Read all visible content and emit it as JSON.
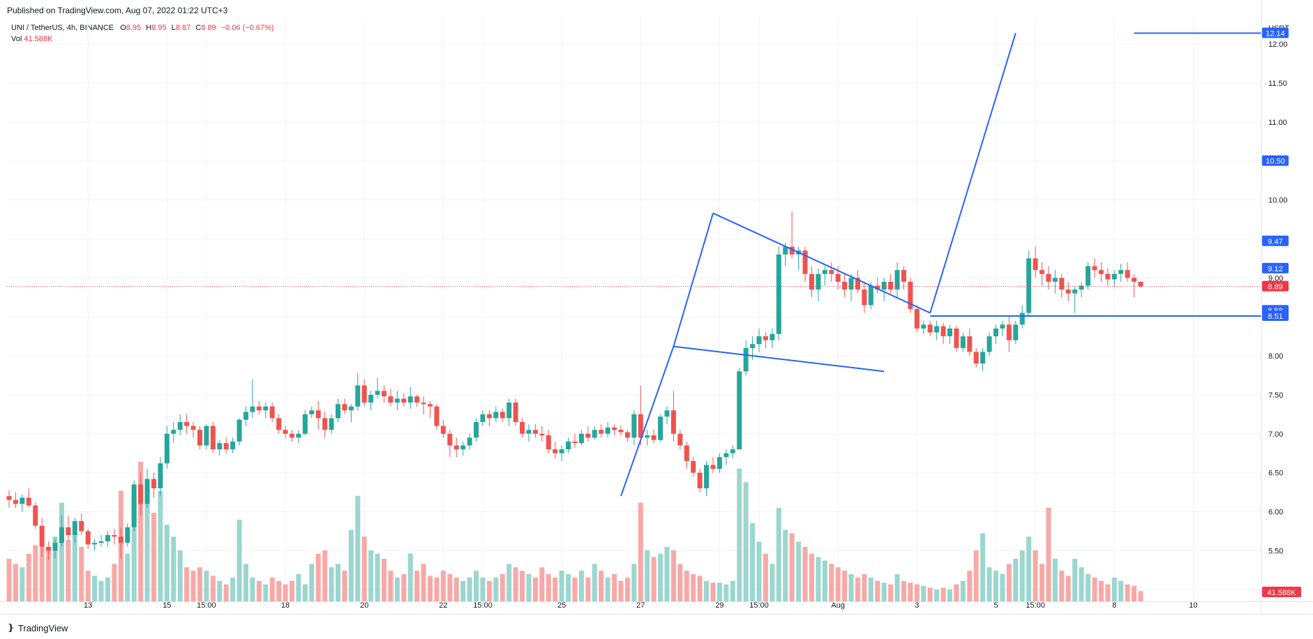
{
  "header": {
    "published": "Published on TradingView.com, Aug 07, 2022 01:22 UTC+3"
  },
  "legend": {
    "symbol": "UNI / TetherUS, 4h, BINANCE",
    "o_label": "O",
    "o_value": "8.95",
    "h_label": "H",
    "h_value": "8.95",
    "l_label": "L",
    "l_value": "8.87",
    "c_label": "C",
    "c_value": "8.89",
    "change": "−0.06 (−0.67%)",
    "vol_label": "Vol",
    "vol_value": "41.588K"
  },
  "footer": {
    "brand": "TradingView"
  },
  "colors": {
    "up": "#26a69a",
    "down": "#ef5350",
    "up_vol": "#9bd6cf",
    "down_vol": "#f7a9a7",
    "drawing": "#2962ff",
    "last_price": "#f23645"
  },
  "chart_data": {
    "type": "candlestick",
    "symbol": "UNI / TetherUS",
    "interval": "4h",
    "exchange": "BINANCE",
    "currency": "USDT",
    "ylim": [
      4.85,
      12.35
    ],
    "y_ticks": [
      "5.00",
      "5.50",
      "6.00",
      "6.50",
      "7.00",
      "7.50",
      "8.00",
      "8.50",
      "9.00",
      "9.50",
      "10.00",
      "10.50",
      "11.00",
      "11.50",
      "12.00"
    ],
    "x_ticks": [
      {
        "label": "13",
        "i": 12
      },
      {
        "label": "15",
        "i": 24
      },
      {
        "label": "15:00",
        "i": 30
      },
      {
        "label": "18",
        "i": 42
      },
      {
        "label": "20",
        "i": 54
      },
      {
        "label": "22",
        "i": 66
      },
      {
        "label": "15:00",
        "i": 72
      },
      {
        "label": "25",
        "i": 84
      },
      {
        "label": "27",
        "i": 96
      },
      {
        "label": "29",
        "i": 108
      },
      {
        "label": "15:00",
        "i": 114
      },
      {
        "label": "Aug",
        "i": 126
      },
      {
        "label": "3",
        "i": 138
      },
      {
        "label": "5",
        "i": 150
      },
      {
        "label": "15:00",
        "i": 156
      },
      {
        "label": "8",
        "i": 168
      },
      {
        "label": "10",
        "i": 180
      }
    ],
    "price_labels": [
      {
        "value": "12.14",
        "y": 12.14,
        "color": "#2962ff"
      },
      {
        "value": "10.50",
        "y": 10.5,
        "color": "#2962ff"
      },
      {
        "value": "9.47",
        "y": 9.47,
        "color": "#2962ff"
      },
      {
        "value": "9.12",
        "y": 9.12,
        "color": "#2962ff"
      },
      {
        "value": "8.89",
        "y": 8.89,
        "color": "#f23645"
      },
      {
        "value": "8.58",
        "y": 8.58,
        "color": "#2962ff"
      },
      {
        "value": "8.51",
        "y": 8.51,
        "color": "#2962ff"
      },
      {
        "value": "41.588K",
        "y": 4.88,
        "color": "#f23645"
      }
    ],
    "last_price": 8.89,
    "drawings": [
      {
        "kind": "line",
        "from": [
          93,
          6.2
        ],
        "to": [
          101,
          8.12
        ]
      },
      {
        "kind": "line",
        "from": [
          101,
          8.12
        ],
        "to": [
          107,
          9.83
        ]
      },
      {
        "kind": "line",
        "from": [
          107,
          9.83
        ],
        "to": [
          140,
          8.55
        ]
      },
      {
        "kind": "line",
        "from": [
          101,
          8.12
        ],
        "to": [
          133,
          7.8
        ]
      },
      {
        "kind": "line",
        "from": [
          140,
          8.55
        ],
        "to": [
          153,
          12.14
        ]
      },
      {
        "kind": "hline",
        "from": [
          140,
          8.51
        ],
        "to": [
          200,
          8.51
        ]
      },
      {
        "kind": "hline",
        "from": [
          171,
          12.14
        ],
        "to": [
          200,
          12.14
        ]
      }
    ],
    "volume_max_label": "41.588K",
    "volume_axis_note": "volume bars overlay bottom of pane, relative heights",
    "candles": [
      [
        6.2,
        6.28,
        6.05,
        6.15,
        0.25
      ],
      [
        6.15,
        6.25,
        6.05,
        6.1,
        0.22
      ],
      [
        6.1,
        6.22,
        6.0,
        6.18,
        0.2
      ],
      [
        6.18,
        6.3,
        6.05,
        6.08,
        0.28
      ],
      [
        6.08,
        6.12,
        5.78,
        5.82,
        0.33
      ],
      [
        5.82,
        5.92,
        5.42,
        5.55,
        0.32
      ],
      [
        5.55,
        5.62,
        5.38,
        5.5,
        0.3
      ],
      [
        5.5,
        5.65,
        5.4,
        5.6,
        0.38
      ],
      [
        5.6,
        5.95,
        5.55,
        5.8,
        0.58
      ],
      [
        5.8,
        5.95,
        5.62,
        5.7,
        0.36
      ],
      [
        5.7,
        5.92,
        5.6,
        5.88,
        0.4
      ],
      [
        5.88,
        5.98,
        5.7,
        5.75,
        0.32
      ],
      [
        5.75,
        5.78,
        5.52,
        5.58,
        0.18
      ],
      [
        5.58,
        5.65,
        5.5,
        5.6,
        0.15
      ],
      [
        5.6,
        5.7,
        5.55,
        5.62,
        0.12
      ],
      [
        5.62,
        5.75,
        5.55,
        5.7,
        0.14
      ],
      [
        5.7,
        5.78,
        5.58,
        5.68,
        0.22
      ],
      [
        5.68,
        5.8,
        5.4,
        5.6,
        0.65
      ],
      [
        5.6,
        5.85,
        5.55,
        5.8,
        0.28
      ],
      [
        5.8,
        6.4,
        5.75,
        6.35,
        0.62
      ],
      [
        6.35,
        6.5,
        5.95,
        6.1,
        0.82
      ],
      [
        6.1,
        6.55,
        6.05,
        6.42,
        0.6
      ],
      [
        6.42,
        6.5,
        6.18,
        6.3,
        0.52
      ],
      [
        6.3,
        6.7,
        6.2,
        6.62,
        0.65
      ],
      [
        6.62,
        7.1,
        6.55,
        7.0,
        0.45
      ],
      [
        7.0,
        7.15,
        6.88,
        7.05,
        0.38
      ],
      [
        7.05,
        7.25,
        6.98,
        7.15,
        0.3
      ],
      [
        7.15,
        7.25,
        7.0,
        7.1,
        0.2
      ],
      [
        7.1,
        7.15,
        6.95,
        7.05,
        0.18
      ],
      [
        7.05,
        7.1,
        6.8,
        6.85,
        0.2
      ],
      [
        6.85,
        7.12,
        6.8,
        7.1,
        0.18
      ],
      [
        7.1,
        7.15,
        6.75,
        6.8,
        0.15
      ],
      [
        6.8,
        6.92,
        6.72,
        6.88,
        0.12
      ],
      [
        6.88,
        6.95,
        6.75,
        6.8,
        0.1
      ],
      [
        6.8,
        6.95,
        6.75,
        6.9,
        0.14
      ],
      [
        6.9,
        7.2,
        6.85,
        7.18,
        0.48
      ],
      [
        7.18,
        7.35,
        7.1,
        7.28,
        0.22
      ],
      [
        7.28,
        7.7,
        7.2,
        7.35,
        0.14
      ],
      [
        7.35,
        7.42,
        7.25,
        7.3,
        0.12
      ],
      [
        7.3,
        7.4,
        7.2,
        7.35,
        0.1
      ],
      [
        7.35,
        7.4,
        7.15,
        7.2,
        0.14
      ],
      [
        7.2,
        7.25,
        7.0,
        7.05,
        0.12
      ],
      [
        7.05,
        7.1,
        6.95,
        7.0,
        0.1
      ],
      [
        7.0,
        7.05,
        6.9,
        6.95,
        0.12
      ],
      [
        6.95,
        7.05,
        6.88,
        7.0,
        0.16
      ],
      [
        7.0,
        7.3,
        6.98,
        7.25,
        0.1
      ],
      [
        7.25,
        7.35,
        7.2,
        7.3,
        0.22
      ],
      [
        7.3,
        7.42,
        7.05,
        7.2,
        0.28
      ],
      [
        7.2,
        7.28,
        6.95,
        7.05,
        0.3
      ],
      [
        7.05,
        7.25,
        7.0,
        7.2,
        0.2
      ],
      [
        7.2,
        7.45,
        7.15,
        7.38,
        0.22
      ],
      [
        7.38,
        7.45,
        7.25,
        7.3,
        0.18
      ],
      [
        7.3,
        7.38,
        7.15,
        7.35,
        0.42
      ],
      [
        7.35,
        7.78,
        7.3,
        7.62,
        0.62
      ],
      [
        7.62,
        7.7,
        7.35,
        7.4,
        0.38
      ],
      [
        7.4,
        7.55,
        7.3,
        7.5,
        0.3
      ],
      [
        7.5,
        7.72,
        7.45,
        7.55,
        0.28
      ],
      [
        7.55,
        7.62,
        7.4,
        7.48,
        0.25
      ],
      [
        7.48,
        7.58,
        7.35,
        7.4,
        0.18
      ],
      [
        7.4,
        7.55,
        7.3,
        7.45,
        0.14
      ],
      [
        7.45,
        7.52,
        7.35,
        7.4,
        0.16
      ],
      [
        7.4,
        7.6,
        7.32,
        7.48,
        0.28
      ],
      [
        7.48,
        7.5,
        7.35,
        7.4,
        0.18
      ],
      [
        7.4,
        7.48,
        7.25,
        7.38,
        0.22
      ],
      [
        7.38,
        7.42,
        7.2,
        7.35,
        0.15
      ],
      [
        7.35,
        7.38,
        7.05,
        7.1,
        0.14
      ],
      [
        7.1,
        7.18,
        6.95,
        7.0,
        0.18
      ],
      [
        7.0,
        7.05,
        6.7,
        6.85,
        0.16
      ],
      [
        6.85,
        6.95,
        6.7,
        6.8,
        0.14
      ],
      [
        6.8,
        6.9,
        6.72,
        6.85,
        0.12
      ],
      [
        6.85,
        7.0,
        6.8,
        6.95,
        0.14
      ],
      [
        6.95,
        7.2,
        6.9,
        7.15,
        0.18
      ],
      [
        7.15,
        7.3,
        7.1,
        7.25,
        0.14
      ],
      [
        7.25,
        7.3,
        7.1,
        7.2,
        0.12
      ],
      [
        7.2,
        7.35,
        7.15,
        7.28,
        0.14
      ],
      [
        7.28,
        7.32,
        7.15,
        7.2,
        0.16
      ],
      [
        7.2,
        7.45,
        7.1,
        7.4,
        0.22
      ],
      [
        7.4,
        7.45,
        7.1,
        7.15,
        0.2
      ],
      [
        7.15,
        7.2,
        6.95,
        7.0,
        0.18
      ],
      [
        7.0,
        7.12,
        6.9,
        7.05,
        0.16
      ],
      [
        7.05,
        7.12,
        6.95,
        7.0,
        0.14
      ],
      [
        7.0,
        7.1,
        6.9,
        6.98,
        0.2
      ],
      [
        6.98,
        7.05,
        6.75,
        6.8,
        0.16
      ],
      [
        6.8,
        6.9,
        6.68,
        6.75,
        0.14
      ],
      [
        6.75,
        6.85,
        6.65,
        6.8,
        0.18
      ],
      [
        6.8,
        6.95,
        6.75,
        6.9,
        0.16
      ],
      [
        6.9,
        7.0,
        6.82,
        6.88,
        0.14
      ],
      [
        6.88,
        7.05,
        6.85,
        7.0,
        0.18
      ],
      [
        7.0,
        7.1,
        6.9,
        6.95,
        0.14
      ],
      [
        6.95,
        7.1,
        6.92,
        7.05,
        0.22
      ],
      [
        7.05,
        7.12,
        6.95,
        7.0,
        0.18
      ],
      [
        7.0,
        7.15,
        6.95,
        7.08,
        0.14
      ],
      [
        7.08,
        7.12,
        6.98,
        7.05,
        0.16
      ],
      [
        7.05,
        7.1,
        6.98,
        7.02,
        0.12
      ],
      [
        7.02,
        7.05,
        6.9,
        6.95,
        0.14
      ],
      [
        6.95,
        7.3,
        6.85,
        7.25,
        0.22
      ],
      [
        7.25,
        7.62,
        6.85,
        6.95,
        0.58
      ],
      [
        6.95,
        7.05,
        6.85,
        6.98,
        0.3
      ],
      [
        6.98,
        7.05,
        6.88,
        6.92,
        0.26
      ],
      [
        6.92,
        7.25,
        6.9,
        7.22,
        0.28
      ],
      [
        7.22,
        7.35,
        7.12,
        7.3,
        0.32
      ],
      [
        7.3,
        7.55,
        6.9,
        7.0,
        0.3
      ],
      [
        7.0,
        7.05,
        6.8,
        6.85,
        0.22
      ],
      [
        6.85,
        6.9,
        6.55,
        6.65,
        0.18
      ],
      [
        6.65,
        6.7,
        6.45,
        6.5,
        0.16
      ],
      [
        6.5,
        6.55,
        6.25,
        6.3,
        0.15
      ],
      [
        6.3,
        6.65,
        6.2,
        6.6,
        0.12
      ],
      [
        6.6,
        6.7,
        6.5,
        6.55,
        0.11
      ],
      [
        6.55,
        6.75,
        6.5,
        6.7,
        0.11
      ],
      [
        6.7,
        6.8,
        6.6,
        6.75,
        0.1
      ],
      [
        6.75,
        6.85,
        6.68,
        6.8,
        0.12
      ],
      [
        6.8,
        7.85,
        6.8,
        7.8,
        0.78
      ],
      [
        7.8,
        8.2,
        7.75,
        8.1,
        0.7
      ],
      [
        8.1,
        8.25,
        7.95,
        8.15,
        0.46
      ],
      [
        8.15,
        8.35,
        8.05,
        8.25,
        0.35
      ],
      [
        8.25,
        8.3,
        8.1,
        8.2,
        0.28
      ],
      [
        8.2,
        8.35,
        8.1,
        8.28,
        0.22
      ],
      [
        8.28,
        9.4,
        8.2,
        9.3,
        0.55
      ],
      [
        9.3,
        9.45,
        9.15,
        9.4,
        0.42
      ],
      [
        9.4,
        9.85,
        9.25,
        9.3,
        0.4
      ],
      [
        9.3,
        9.4,
        9.1,
        9.35,
        0.35
      ],
      [
        9.35,
        9.4,
        8.95,
        9.05,
        0.32
      ],
      [
        9.05,
        9.15,
        8.75,
        8.85,
        0.28
      ],
      [
        8.85,
        9.12,
        8.7,
        9.05,
        0.26
      ],
      [
        9.05,
        9.15,
        8.9,
        9.1,
        0.24
      ],
      [
        9.1,
        9.2,
        8.95,
        9.05,
        0.22
      ],
      [
        9.05,
        9.15,
        8.85,
        8.95,
        0.2
      ],
      [
        8.95,
        9.05,
        8.75,
        8.85,
        0.18
      ],
      [
        8.85,
        9.05,
        8.7,
        9.0,
        0.16
      ],
      [
        9.0,
        9.1,
        8.8,
        8.85,
        0.14
      ],
      [
        8.85,
        8.95,
        8.55,
        8.65,
        0.16
      ],
      [
        8.65,
        8.95,
        8.6,
        8.9,
        0.14
      ],
      [
        8.9,
        9.0,
        8.8,
        8.85,
        0.12
      ],
      [
        8.85,
        9.0,
        8.7,
        8.95,
        0.11
      ],
      [
        8.95,
        9.05,
        8.8,
        8.85,
        0.1
      ],
      [
        8.85,
        9.2,
        8.75,
        9.1,
        0.16
      ],
      [
        9.1,
        9.15,
        8.85,
        8.95,
        0.12
      ],
      [
        8.95,
        9.0,
        8.55,
        8.6,
        0.11
      ],
      [
        8.6,
        8.65,
        8.3,
        8.35,
        0.1
      ],
      [
        8.35,
        8.45,
        8.28,
        8.4,
        0.09
      ],
      [
        8.4,
        8.45,
        8.25,
        8.3,
        0.08
      ],
      [
        8.3,
        8.45,
        8.2,
        8.38,
        0.07
      ],
      [
        8.38,
        8.42,
        8.15,
        8.25,
        0.08
      ],
      [
        8.25,
        8.4,
        8.15,
        8.35,
        0.07
      ],
      [
        8.35,
        8.38,
        8.05,
        8.1,
        0.1
      ],
      [
        8.1,
        8.3,
        8.05,
        8.25,
        0.12
      ],
      [
        8.25,
        8.35,
        8.0,
        8.05,
        0.18
      ],
      [
        8.05,
        8.1,
        7.85,
        7.9,
        0.3
      ],
      [
        7.9,
        8.1,
        7.8,
        8.05,
        0.4
      ],
      [
        8.05,
        8.3,
        8.0,
        8.25,
        0.2
      ],
      [
        8.25,
        8.4,
        8.15,
        8.35,
        0.18
      ],
      [
        8.35,
        8.45,
        8.25,
        8.4,
        0.16
      ],
      [
        8.4,
        8.5,
        8.05,
        8.2,
        0.22
      ],
      [
        8.2,
        8.45,
        8.15,
        8.4,
        0.25
      ],
      [
        8.4,
        8.65,
        8.35,
        8.55,
        0.3
      ],
      [
        8.55,
        9.35,
        8.5,
        9.25,
        0.38
      ],
      [
        9.25,
        9.4,
        9.0,
        9.1,
        0.3
      ],
      [
        9.1,
        9.2,
        8.9,
        9.05,
        0.22
      ],
      [
        9.05,
        9.15,
        8.85,
        8.95,
        0.55
      ],
      [
        8.95,
        9.1,
        8.8,
        9.0,
        0.25
      ],
      [
        9.0,
        9.05,
        8.75,
        8.85,
        0.18
      ],
      [
        8.85,
        8.95,
        8.7,
        8.8,
        0.15
      ],
      [
        8.8,
        8.9,
        8.55,
        8.85,
        0.25
      ],
      [
        8.85,
        8.95,
        8.75,
        8.9,
        0.2
      ],
      [
        8.9,
        9.2,
        8.85,
        9.15,
        0.16
      ],
      [
        9.15,
        9.25,
        9.0,
        9.1,
        0.14
      ],
      [
        9.1,
        9.2,
        8.95,
        9.05,
        0.12
      ],
      [
        9.05,
        9.12,
        8.9,
        8.98,
        0.1
      ],
      [
        8.98,
        9.1,
        8.88,
        9.05,
        0.14
      ],
      [
        9.05,
        9.18,
        8.95,
        9.1,
        0.12
      ],
      [
        9.1,
        9.2,
        8.95,
        9.0,
        0.1
      ],
      [
        9.0,
        9.05,
        8.75,
        8.95,
        0.09
      ],
      [
        8.95,
        8.95,
        8.87,
        8.89,
        0.06
      ]
    ]
  }
}
